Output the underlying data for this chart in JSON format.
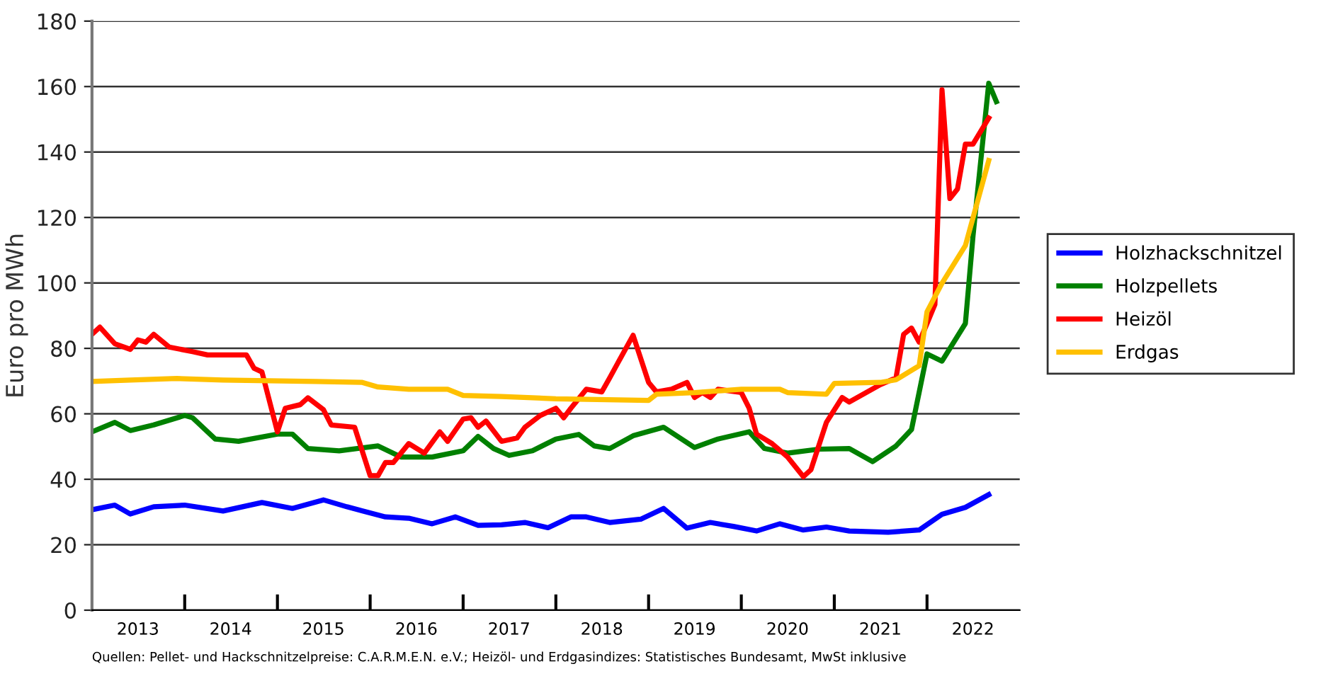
{
  "chart_data": {
    "type": "line",
    "ylabel": "Euro pro MWh",
    "xlim": [
      "2013-01",
      "2023-01"
    ],
    "ylim": [
      0,
      180
    ],
    "yticks": [
      0,
      20,
      40,
      60,
      80,
      100,
      120,
      140,
      160,
      180
    ],
    "xticks": [
      {
        "value": "2014-01",
        "label": null
      },
      {
        "value": "2015-01",
        "label": null
      },
      {
        "value": "2016-01",
        "label": null
      },
      {
        "value": "2017-01",
        "label": null
      },
      {
        "value": "2018-01",
        "label": null
      },
      {
        "value": "2019-01",
        "label": null
      },
      {
        "value": "2020-01",
        "label": null
      },
      {
        "value": "2021-01",
        "label": null
      },
      {
        "value": "2022-01",
        "label": null
      },
      {
        "value": "2013-07",
        "label": "2013"
      },
      {
        "value": "2014-07",
        "label": "2014"
      },
      {
        "value": "2015-07",
        "label": "2015"
      },
      {
        "value": "2016-07",
        "label": "2016"
      },
      {
        "value": "2017-07",
        "label": "2017"
      },
      {
        "value": "2018-07",
        "label": "2018"
      },
      {
        "value": "2019-07",
        "label": "2019"
      },
      {
        "value": "2020-07",
        "label": "2020"
      },
      {
        "value": "2021-07",
        "label": "2021"
      },
      {
        "value": "2022-07",
        "label": "2022"
      }
    ],
    "grid": "y",
    "legend": "right",
    "marker": "none",
    "line_style": "solid",
    "annotations": [
      "Quellen: Pellet- und Hackschnitzelpreise: C.A.R.M.E.N. e.V.; Heizöl- und Erdgasindizes: Statistisches Bundesamt, MwSt inklusive"
    ],
    "series": [
      {
        "name": "Holzhackschnitzel",
        "color": "#0000ff",
        "x": [
          "2013-01",
          "2013-04",
          "2013-06",
          "2013-09",
          "2014-01",
          "2014-06",
          "2014-11",
          "2015-03",
          "2015-07",
          "2015-10",
          "2016-03",
          "2016-06",
          "2016-09",
          "2016-12",
          "2017-03",
          "2017-06",
          "2017-09",
          "2017-12",
          "2018-03",
          "2018-05",
          "2018-08",
          "2018-12",
          "2019-03",
          "2019-06",
          "2019-09",
          "2019-12",
          "2020-03",
          "2020-06",
          "2020-09",
          "2020-12",
          "2021-03",
          "2021-08",
          "2021-12",
          "2022-03",
          "2022-06",
          "2022-09"
        ],
        "values": [
          30.7,
          32.1,
          29.4,
          31.6,
          32.1,
          30.3,
          32.9,
          31.1,
          33.7,
          31.6,
          28.5,
          28.1,
          26.4,
          28.5,
          25.9,
          26.1,
          26.8,
          25.2,
          28.5,
          28.5,
          26.8,
          27.8,
          31.1,
          25.1,
          26.8,
          25.6,
          24.2,
          26.4,
          24.5,
          25.4,
          24.2,
          23.8,
          24.5,
          29.3,
          31.4,
          35.3
        ]
      },
      {
        "name": "Holzpellets",
        "color": "#008000",
        "x": [
          "2013-01",
          "2013-04",
          "2013-06",
          "2013-09",
          "2014-01",
          "2014-02",
          "2014-05",
          "2014-08",
          "2015-01",
          "2015-03",
          "2015-05",
          "2015-09",
          "2016-02",
          "2016-05",
          "2016-09",
          "2017-01",
          "2017-03",
          "2017-05",
          "2017-07",
          "2017-10",
          "2018-01",
          "2018-04",
          "2018-06",
          "2018-08",
          "2018-11",
          "2019-03",
          "2019-07",
          "2019-10",
          "2020-02",
          "2020-04",
          "2020-07",
          "2020-11",
          "2021-03",
          "2021-06",
          "2021-09",
          "2021-11",
          "2022-01",
          "2022-03",
          "2022-06",
          "2022-07",
          "2022-09",
          "2022-10"
        ],
        "values": [
          54.5,
          57.4,
          54.9,
          56.6,
          59.5,
          58.8,
          52.3,
          51.6,
          53.8,
          53.8,
          49.4,
          48.7,
          50.2,
          46.8,
          46.8,
          48.7,
          53.1,
          49.4,
          47.3,
          48.7,
          52.3,
          53.7,
          50.2,
          49.4,
          53.3,
          55.9,
          49.7,
          52.3,
          54.5,
          49.4,
          48.0,
          49.2,
          49.4,
          45.4,
          50.2,
          55.2,
          78.3,
          76.1,
          87.6,
          114.3,
          161.0,
          155.4
        ]
      },
      {
        "name": "Heizöl",
        "color": "#ff0000",
        "x": [
          "2013-01",
          "2013-02",
          "2013-04",
          "2013-06",
          "2013-07",
          "2013-08",
          "2013-09",
          "2013-11",
          "2014-02",
          "2014-04",
          "2014-07",
          "2014-09",
          "2014-10",
          "2014-11",
          "2015-01",
          "2015-02",
          "2015-04",
          "2015-05",
          "2015-07",
          "2015-08",
          "2015-11",
          "2016-01",
          "2016-02",
          "2016-03",
          "2016-04",
          "2016-06",
          "2016-08",
          "2016-10",
          "2016-11",
          "2017-01",
          "2017-02",
          "2017-03",
          "2017-04",
          "2017-06",
          "2017-08",
          "2017-09",
          "2017-11",
          "2018-01",
          "2018-02",
          "2018-03",
          "2018-05",
          "2018-07",
          "2018-08",
          "2018-09",
          "2018-11",
          "2019-01",
          "2019-02",
          "2019-04",
          "2019-06",
          "2019-07",
          "2019-08",
          "2019-09",
          "2019-10",
          "2020-01",
          "2020-02",
          "2020-03",
          "2020-05",
          "2020-07",
          "2020-09",
          "2020-10",
          "2020-12",
          "2021-02",
          "2021-03",
          "2021-07",
          "2021-09",
          "2021-10",
          "2021-11",
          "2021-12",
          "2022-01",
          "2022-02",
          "2022-03",
          "2022-04",
          "2022-05",
          "2022-06",
          "2022-07",
          "2022-09"
        ],
        "values": [
          84.3,
          86.5,
          81.4,
          79.7,
          82.6,
          81.9,
          84.3,
          80.4,
          79.0,
          78.0,
          78.0,
          78.0,
          73.9,
          72.8,
          54.5,
          61.7,
          62.8,
          64.9,
          61.3,
          56.6,
          55.9,
          41.1,
          41.1,
          45.1,
          45.1,
          50.9,
          48.0,
          54.5,
          51.6,
          58.4,
          58.8,
          55.9,
          57.8,
          51.6,
          52.6,
          55.9,
          59.5,
          61.7,
          58.8,
          61.7,
          67.5,
          66.7,
          71.0,
          75.4,
          84.0,
          69.6,
          66.7,
          67.5,
          69.6,
          65.0,
          66.5,
          65.0,
          67.5,
          66.5,
          61.7,
          53.8,
          50.9,
          46.8,
          40.8,
          42.9,
          57.4,
          65.0,
          63.6,
          68.9,
          71.0,
          84.3,
          86.2,
          81.9,
          87.6,
          93.4,
          159.0,
          125.8,
          128.7,
          142.4,
          142.4,
          150.4
        ]
      },
      {
        "name": "Erdgas",
        "color": "#ffc000",
        "x": [
          "2013-01",
          "2013-06",
          "2013-12",
          "2014-06",
          "2015-06",
          "2015-12",
          "2016-02",
          "2016-06",
          "2016-11",
          "2017-01",
          "2017-06",
          "2018-01",
          "2019-01",
          "2019-02",
          "2019-07",
          "2020-01",
          "2020-06",
          "2020-07",
          "2020-12",
          "2021-01",
          "2021-07",
          "2021-09",
          "2021-12",
          "2022-01",
          "2022-03",
          "2022-06",
          "2022-09"
        ],
        "values": [
          69.9,
          70.3,
          70.8,
          70.3,
          69.9,
          69.6,
          68.2,
          67.5,
          67.5,
          65.6,
          65.3,
          64.6,
          64.1,
          66.0,
          66.5,
          67.5,
          67.5,
          66.5,
          66.0,
          69.3,
          69.6,
          70.4,
          74.7,
          91.2,
          99.9,
          111.4,
          137.4
        ]
      }
    ]
  }
}
